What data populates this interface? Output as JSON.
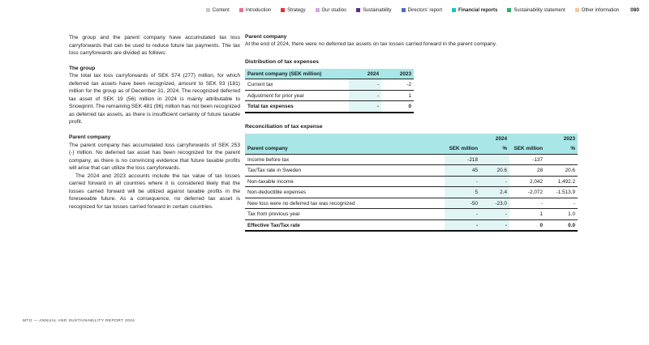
{
  "nav": {
    "items": [
      {
        "label": "Content",
        "color": "#c7c7c7",
        "active": false
      },
      {
        "label": "Introduction",
        "color": "#f0708e",
        "active": false
      },
      {
        "label": "Strategy",
        "color": "#e8322b",
        "active": false
      },
      {
        "label": "Our studios",
        "color": "#d8a8e8",
        "active": false
      },
      {
        "label": "Sustainability",
        "color": "#5a2c91",
        "active": false
      },
      {
        "label": "Directors' report",
        "color": "#5068cc",
        "active": false
      },
      {
        "label": "Financial reports",
        "color": "#00c9d0",
        "active": true
      },
      {
        "label": "Sustainability statement",
        "color": "#2ab469",
        "active": false
      },
      {
        "label": "Other information",
        "color": "#f8c79c",
        "active": false
      }
    ],
    "page_number": "080"
  },
  "left_column": {
    "intro": "The group and the parent company have accumulated tax loss carryforwards that can be used to reduce future tax payments. The tax loss carryforwards are divided as follows:",
    "group_heading": "The group",
    "group_text": "The total tax loss carryforwards of SEK 574 (277) million, for which deferred tax assets have been recognized, amount to SEK 93 (181) million for the group as of December 31, 2024. The recognized deferred tax asset of SEK 19 (56) million in 2024 is mainly attributable to Snowprint. The remaining SEK 481 (96) million has not been recognized as deferred tax assets, as there is insufficient certainty of future taxable profit.",
    "parent_heading": "Parent company",
    "parent_text_1": "The parent company has accumulated loss carryforwards of SEK 253 (-) million. No deferred tax asset has been recognized for the parent company, as there is no convincing evidence that future taxable profits will arise that can utilize the loss carryforwards.",
    "parent_text_2": "The 2024 and 2023 accounts include the tax value of tax losses carried forward in all countries where it is considered likely that the losses carried forward will be utilized against taxable profits in the foreseeable future. As a consequence, no deferred tax asset is recognized for tax losses carried forward in certain countries."
  },
  "right_column": {
    "parent_heading": "Parent company",
    "parent_text": "At the end of 2024, there were no deferred tax assets on tax losses carried forward in the parent company.",
    "distribution": {
      "title": "Distribution of tax expenses",
      "header": [
        "Parent company (SEK million)",
        "2024",
        "2023"
      ],
      "rows": [
        {
          "label": "Current tax",
          "y2024": "-",
          "y2023": "-2",
          "bold": false
        },
        {
          "label": "Adjustment for prior year",
          "y2024": "-",
          "y2023": "1",
          "bold": false
        },
        {
          "label": "Total tax expenses",
          "y2024": "-",
          "y2023": "0",
          "bold": true
        }
      ]
    },
    "reconciliation": {
      "title": "Reconciliation of tax expense",
      "year_headers": [
        "2024",
        "2023"
      ],
      "col_headers": [
        "Parent company",
        "SEK million",
        "%",
        "SEK million",
        "%"
      ],
      "rows": [
        {
          "label": "Income before tax",
          "sek2024": "-218",
          "pct2024": "",
          "sek2023": "-137",
          "pct2023": "",
          "bold": false
        },
        {
          "label": "Tax/Tax rate in Sweden",
          "sek2024": "45",
          "pct2024": "20.6",
          "sek2023": "28",
          "pct2023": "20.6",
          "bold": false
        },
        {
          "label": "Non-taxable income",
          "sek2024": "-",
          "pct2024": "-",
          "sek2023": "2,042",
          "pct2023": "1,492.2",
          "bold": false
        },
        {
          "label": "Non-deductible expenses",
          "sek2024": "5",
          "pct2024": "2.4",
          "sek2023": "-2,072",
          "pct2023": "-1,513.9",
          "bold": false
        },
        {
          "label": "New loss were no deferred tax was recognized",
          "sek2024": "-50",
          "pct2024": "-23.0",
          "sek2023": "-",
          "pct2023": "-",
          "bold": false
        },
        {
          "label": "Tax from previous year",
          "sek2024": "-",
          "pct2024": "-",
          "sek2023": "1",
          "pct2023": "1.0",
          "bold": false
        },
        {
          "label": "Effective Tax/Tax rate",
          "sek2024": "-",
          "pct2024": "-",
          "sek2023": "0",
          "pct2023": "0.0",
          "bold": true
        }
      ]
    }
  },
  "footer": "MTG — ANNUAL AND SUSTAINABILITY REPORT 2024",
  "colors": {
    "table_header_bg": "#a9e6e7",
    "column_highlight_bg": "#e2f5f5",
    "accent_cyan": "#00c9d0"
  }
}
